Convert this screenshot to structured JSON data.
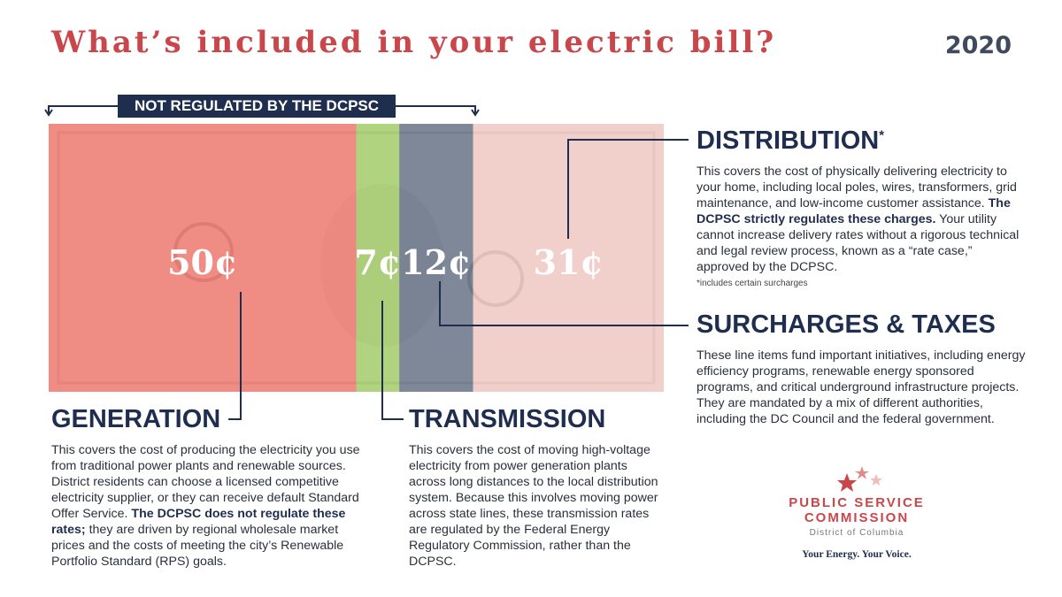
{
  "header": {
    "title": "What’s included in your electric bill?",
    "year": "2020"
  },
  "bracket_label": "NOT REGULATED BY THE DCPSC",
  "bill_segments": [
    {
      "value": 50,
      "label": "50¢",
      "color": "#f07a72"
    },
    {
      "value": 7,
      "label": "7¢",
      "color": "#a3d06b"
    },
    {
      "value": 12,
      "label": "12¢",
      "color": "#67748a"
    },
    {
      "value": 31,
      "label": "31¢",
      "color": "#f3cbc6"
    }
  ],
  "distribution": {
    "heading": "DISTRIBUTION",
    "marker": "*",
    "body_before": "This covers the cost of physically delivering electricity to your home, including local poles, wires, transformers, grid maintenance, and low-income customer assistance. ",
    "body_bold": "The DCPSC strictly regulates these charges.",
    "body_after": " Your utility cannot increase delivery rates without a rigorous technical and legal review process, known as a “rate case,” approved by the DCPSC.",
    "footnote": "*includes certain surcharges"
  },
  "surcharges": {
    "heading": "SURCHARGES & TAXES",
    "body": "These line items fund important initiatives, including energy efficiency programs, renewable energy sponsored programs, and critical underground infrastructure projects. They are mandated by a mix of different authorities, including the DC Council and the federal government."
  },
  "generation": {
    "heading": "GENERATION",
    "body_before": "This covers the cost of producing the electricity you use from traditional power plants and renewable sources. District residents can choose a licensed competitive electricity supplier, or they can receive default Standard Offer Service. ",
    "body_bold": "The DCPSC does not regulate these rates;",
    "body_after": " they are driven by regional wholesale market prices and the costs of meeting the city’s Renewable Portfolio Standard (RPS) goals."
  },
  "transmission": {
    "heading": "TRANSMISSION",
    "body": "This covers the cost of moving high-voltage electricity from power generation plants across long distances to the local distribution system. Because this involves moving power across state lines, these transmission rates are regulated by the Federal Energy Regulatory Commission, rather than the DCPSC."
  },
  "logo": {
    "line1": "PUBLIC SERVICE",
    "line2": "COMMISSION",
    "line3": "District of Columbia",
    "tagline": "Your Energy. Your Voice."
  }
}
